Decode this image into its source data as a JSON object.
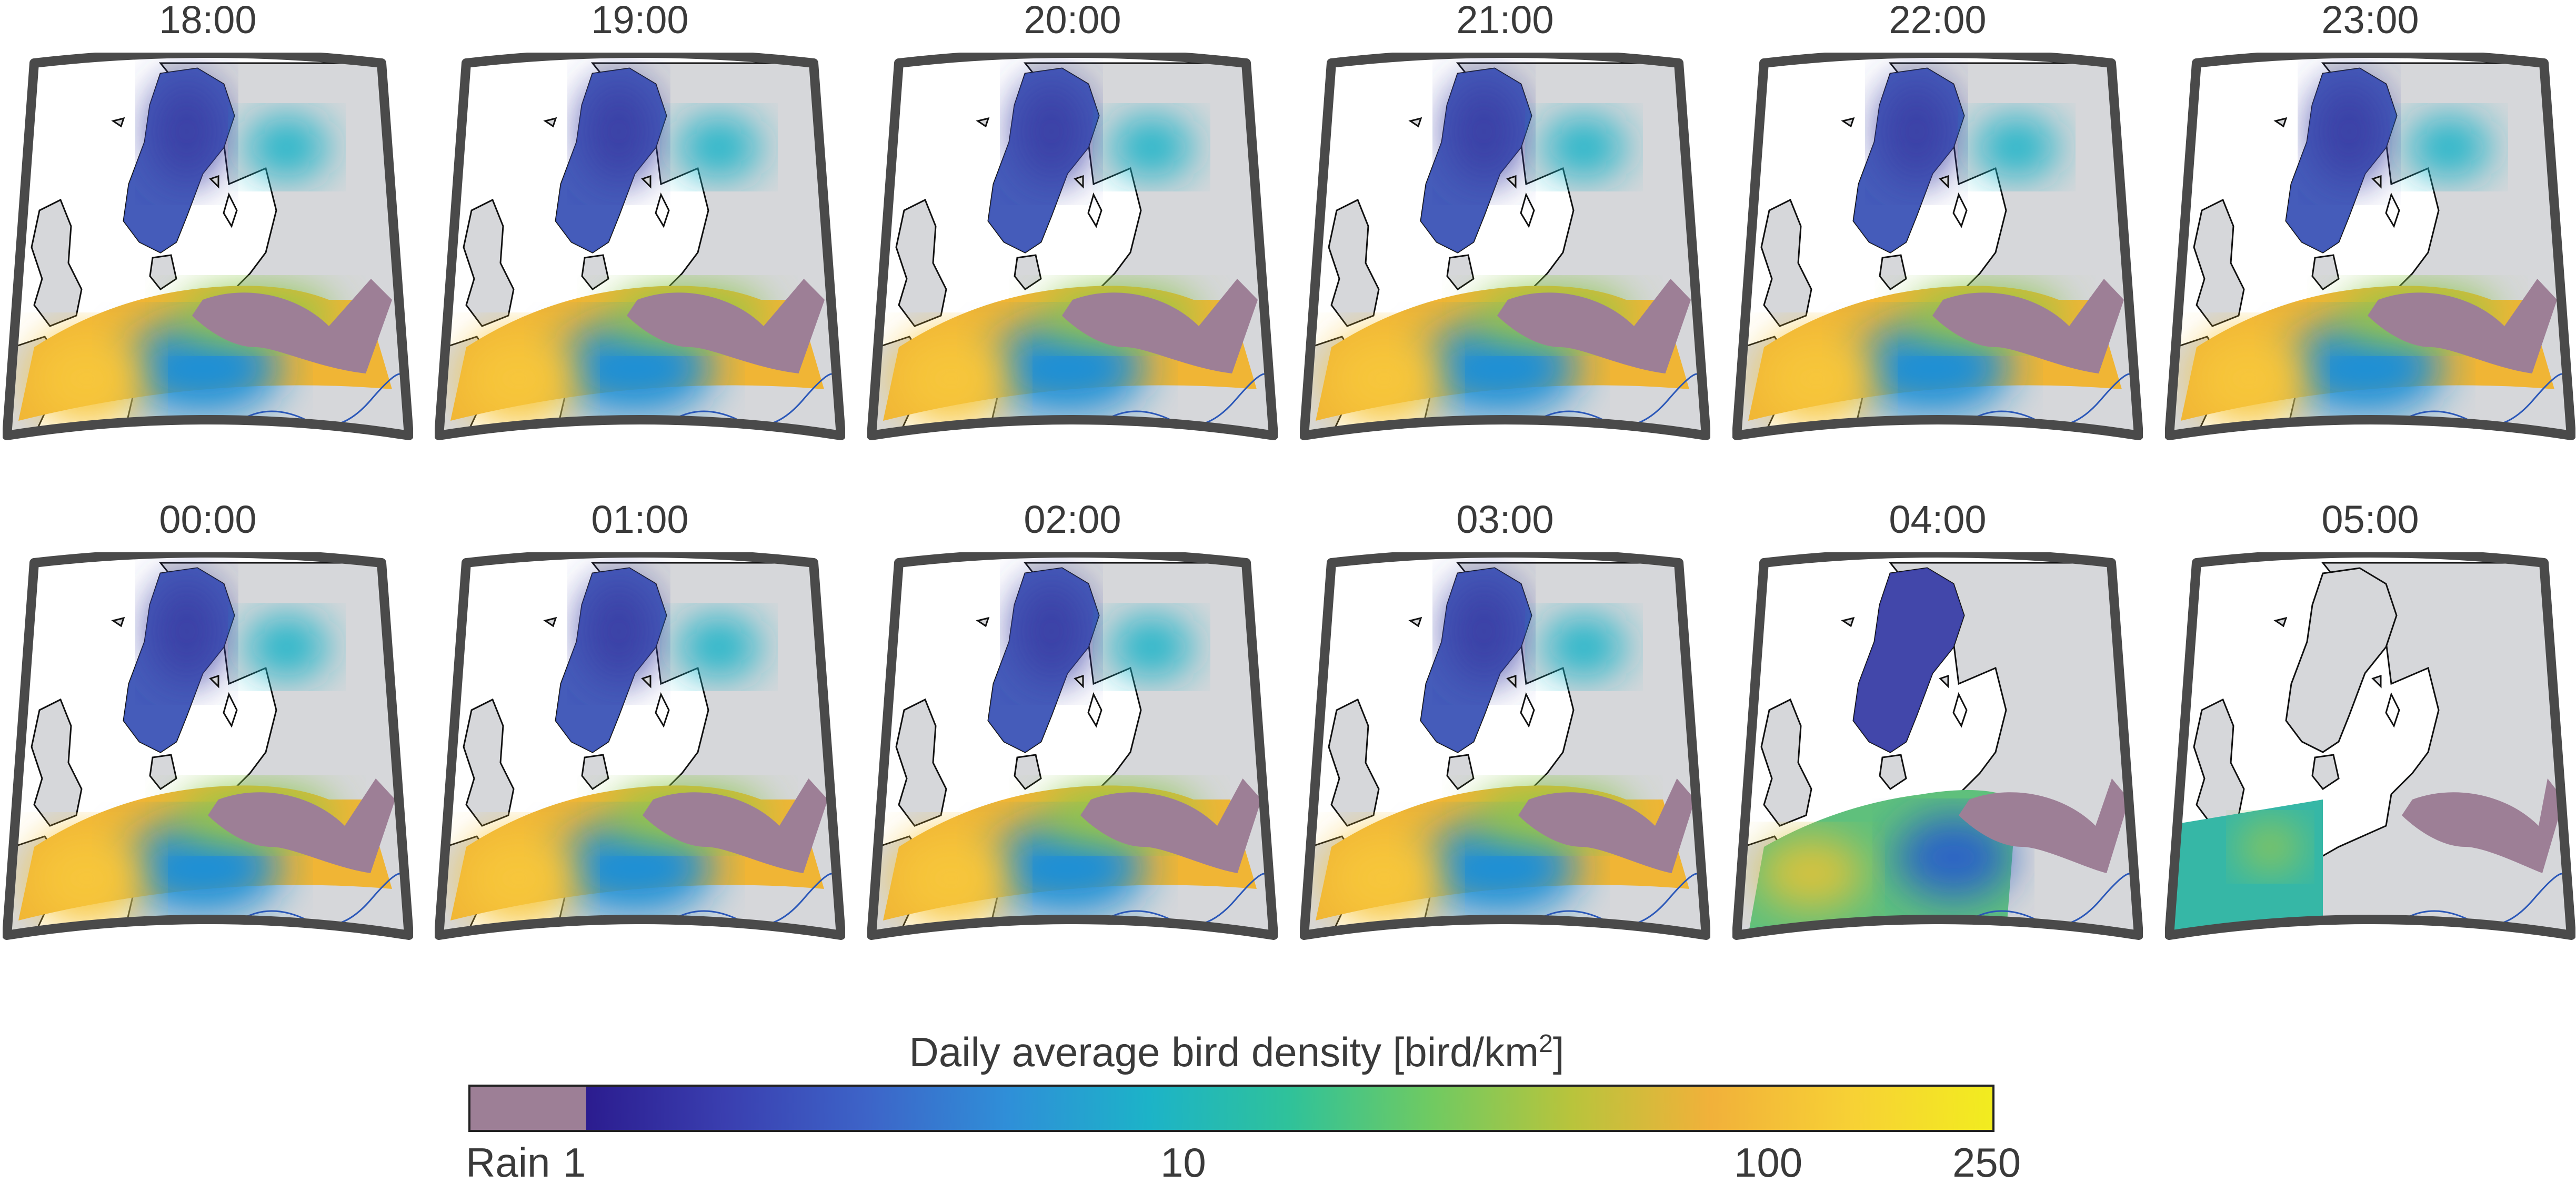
{
  "panels": [
    {
      "time": "18:00",
      "mode": "full",
      "rainShift": 0
    },
    {
      "time": "19:00",
      "mode": "full",
      "rainShift": 5
    },
    {
      "time": "20:00",
      "mode": "full",
      "rainShift": 10
    },
    {
      "time": "21:00",
      "mode": "full",
      "rainShift": 15
    },
    {
      "time": "22:00",
      "mode": "full",
      "rainShift": 20
    },
    {
      "time": "23:00",
      "mode": "full",
      "rainShift": 25
    },
    {
      "time": "00:00",
      "mode": "full",
      "rainShift": 30
    },
    {
      "time": "01:00",
      "mode": "full",
      "rainShift": 35
    },
    {
      "time": "02:00",
      "mode": "full",
      "rainShift": 45
    },
    {
      "time": "03:00",
      "mode": "full",
      "rainShift": 55
    },
    {
      "time": "04:00",
      "mode": "partial",
      "rainShift": 70
    },
    {
      "time": "05:00",
      "mode": "minimal",
      "rainShift": 90
    }
  ],
  "colorbar": {
    "title": "Daily average bird density [bird/km",
    "title_sup": "2",
    "title_end": "]",
    "rain_label": "Rain",
    "ticks": [
      "1",
      "10",
      "100",
      "250"
    ],
    "rain_color": "#9d7f96",
    "gradient": [
      "#2b1c8f",
      "#3a3fb0",
      "#3d64c8",
      "#2f8fd8",
      "#1cb3c8",
      "#2fc29a",
      "#6fca62",
      "#b8c43c",
      "#f1b13a",
      "#f7d135",
      "#f2ec1f"
    ]
  },
  "colors": {
    "land": "#d6d7da",
    "frame": "#4a4a4a",
    "coast": "#111111",
    "river": "#2a57b8",
    "rain": "#9d7f96"
  }
}
